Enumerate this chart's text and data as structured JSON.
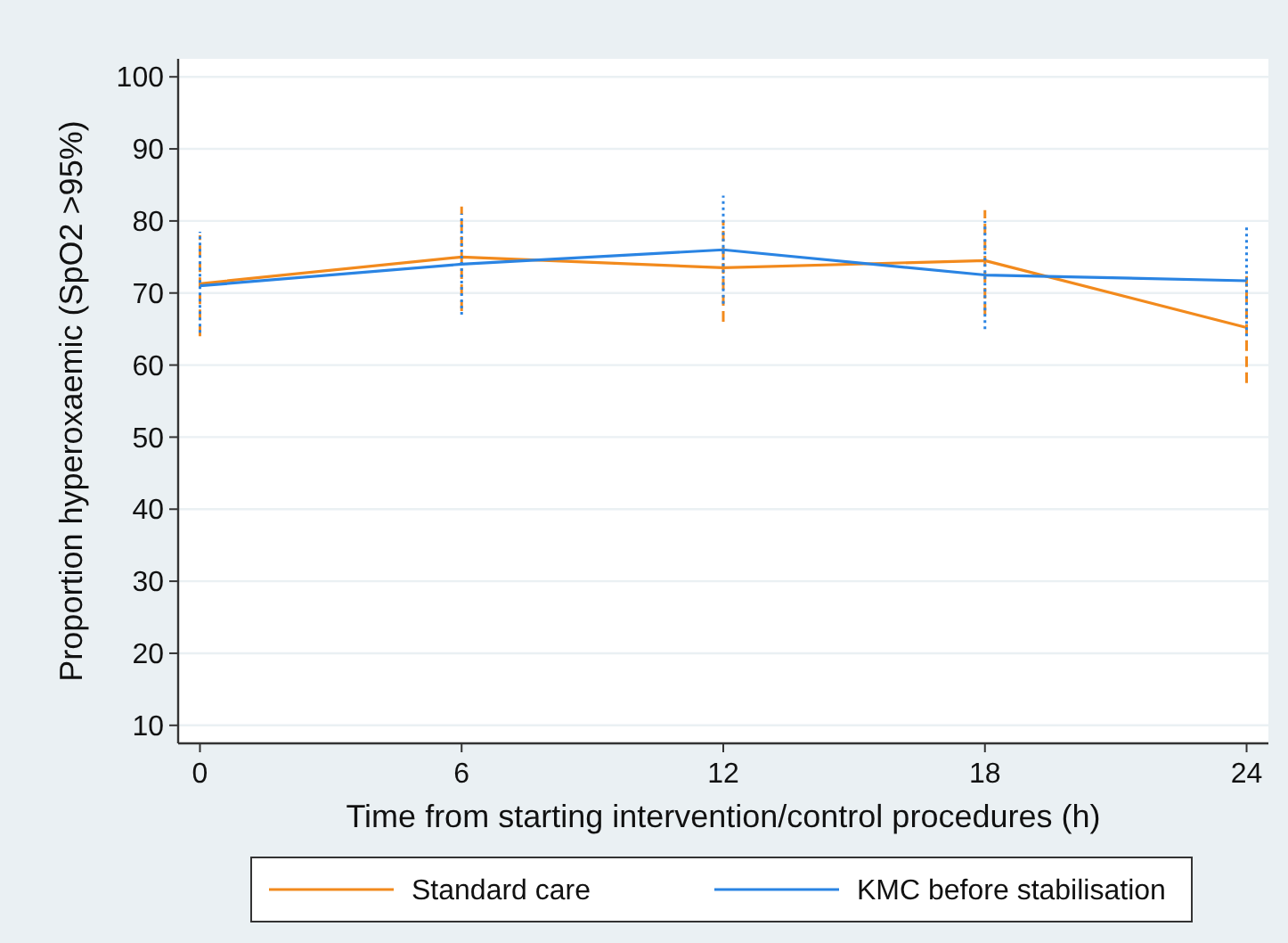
{
  "chart_data": {
    "type": "line",
    "xlabel": "Time from starting intervention/control procedures (h)",
    "ylabel": "Proportion hyperoxaemic (SpO2 >95%)",
    "x": [
      0,
      6,
      12,
      18,
      24
    ],
    "series": [
      {
        "name": "Standard care",
        "color": "#f28a1d",
        "values": [
          71.3,
          75,
          73.5,
          74.5,
          65.2
        ],
        "errors": [
          [
            64,
            78
          ],
          [
            67.5,
            82
          ],
          [
            66,
            80
          ],
          [
            67,
            81.5
          ],
          [
            57.5,
            72.5
          ]
        ]
      },
      {
        "name": "KMC before stabilisation",
        "color": "#2a84e3",
        "values": [
          71,
          74,
          76,
          72.5,
          71.7
        ],
        "errors": [
          [
            64.5,
            78.5
          ],
          [
            67,
            81
          ],
          [
            68.5,
            83.5
          ],
          [
            65,
            80
          ],
          [
            64,
            79.5
          ]
        ]
      }
    ],
    "xlim": [
      -0.5,
      24.5
    ],
    "ylim": [
      7.5,
      102.5
    ],
    "xticks": [
      0,
      6,
      12,
      18,
      24
    ],
    "yticks": [
      10,
      20,
      30,
      40,
      50,
      60,
      70,
      80,
      90,
      100
    ],
    "grid": "y",
    "legend": "bottom",
    "marker": "none"
  }
}
